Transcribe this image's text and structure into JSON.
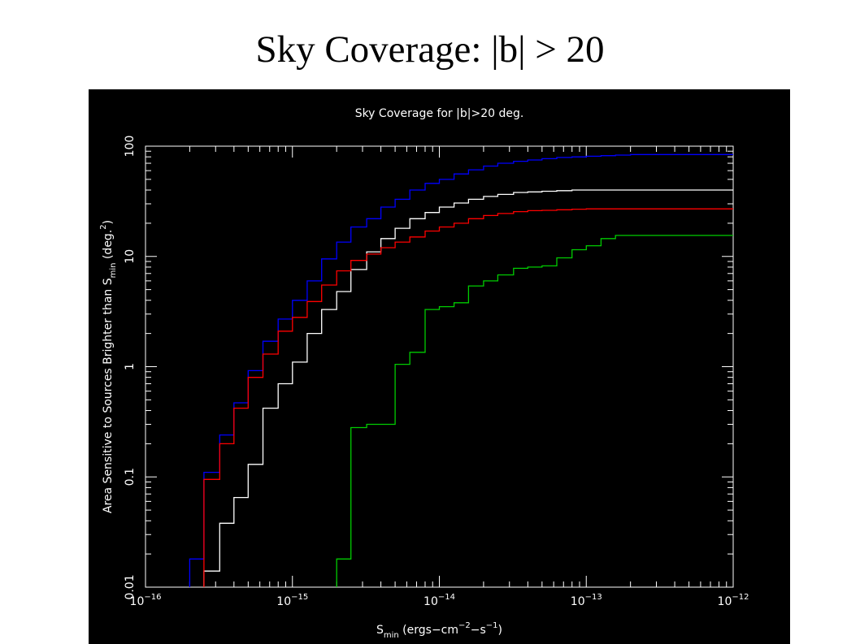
{
  "page": {
    "title": "Sky Coverage: |b| > 20"
  },
  "chart_data": {
    "type": "line",
    "title": "Sky Coverage for |b|>20 deg.",
    "xlabel": "S_min (ergs-cm^-2-s^-1)",
    "ylabel": "Area Sensitive to Sources Brighter than S_min (deg.^2)",
    "x_scale": "log",
    "y_scale": "log",
    "xlim": [
      1e-16,
      1e-12
    ],
    "ylim": [
      0.01,
      100
    ],
    "x_ticks": [
      {
        "value": 1e-16,
        "mantissa": "10",
        "exponent": "−16"
      },
      {
        "value": 1e-15,
        "mantissa": "10",
        "exponent": "−15"
      },
      {
        "value": 1e-14,
        "mantissa": "10",
        "exponent": "−14"
      },
      {
        "value": 1e-13,
        "mantissa": "10",
        "exponent": "−13"
      },
      {
        "value": 1e-12,
        "mantissa": "10",
        "exponent": "−12"
      }
    ],
    "y_ticks": [
      {
        "value": 0.01,
        "label": "0.01"
      },
      {
        "value": 0.1,
        "label": "0.1"
      },
      {
        "value": 1,
        "label": "1"
      },
      {
        "value": 10,
        "label": "10"
      },
      {
        "value": 100,
        "label": "100"
      }
    ],
    "grid": false,
    "step": true,
    "series": [
      {
        "color": "#0000ff",
        "x": [
          2e-16,
          2.5e-16,
          3.2e-16,
          4e-16,
          5e-16,
          6.3e-16,
          8e-16,
          1e-15,
          1.26e-15,
          1.58e-15,
          2e-15,
          2.5e-15,
          3.2e-15,
          4e-15,
          5e-15,
          6.3e-15,
          8e-15,
          1e-14,
          1.26e-14,
          1.58e-14,
          2e-14,
          2.5e-14,
          3.2e-14,
          4e-14,
          5e-14,
          6.3e-14,
          8e-14,
          1e-13,
          1.26e-13,
          1.58e-13,
          2e-13,
          1e-12
        ],
        "y": [
          0.018,
          0.11,
          0.24,
          0.47,
          0.92,
          1.7,
          2.7,
          4.0,
          6.0,
          9.5,
          13.5,
          18.5,
          22.0,
          28.0,
          33.0,
          40.0,
          46.0,
          50.0,
          56.0,
          61.0,
          66.0,
          70.0,
          73.0,
          75.0,
          77.0,
          79.0,
          80.0,
          81.0,
          82.0,
          83.0,
          84.0,
          84.0
        ]
      },
      {
        "color": "#ffffff",
        "x": [
          2.5e-16,
          3.2e-16,
          4e-16,
          5e-16,
          6.3e-16,
          8e-16,
          1e-15,
          1.26e-15,
          1.58e-15,
          2e-15,
          2.5e-15,
          3.2e-15,
          4e-15,
          5e-15,
          6.3e-15,
          8e-15,
          1e-14,
          1.26e-14,
          1.58e-14,
          2e-14,
          2.5e-14,
          3.2e-14,
          4e-14,
          5e-14,
          6.3e-14,
          8e-14,
          1e-13,
          1e-12
        ],
        "y": [
          0.014,
          0.038,
          0.065,
          0.13,
          0.42,
          0.7,
          1.1,
          2.0,
          3.3,
          4.8,
          7.6,
          11.0,
          14.5,
          18.0,
          22.0,
          25.0,
          28.0,
          30.5,
          33.0,
          35.0,
          36.5,
          38.0,
          38.5,
          39.0,
          39.5,
          40.0,
          40.0,
          40.0
        ]
      },
      {
        "color": "#ff0000",
        "x": [
          2.5e-16,
          3.2e-16,
          4e-16,
          5e-16,
          6.3e-16,
          8e-16,
          1e-15,
          1.26e-15,
          1.58e-15,
          2e-15,
          2.5e-15,
          3.2e-15,
          4e-15,
          5e-15,
          6.3e-15,
          8e-15,
          1e-14,
          1.26e-14,
          1.58e-14,
          2e-14,
          2.5e-14,
          3.2e-14,
          4e-14,
          5e-14,
          6.3e-14,
          8e-14,
          1e-13,
          1.26e-13,
          1e-12
        ],
        "y": [
          0.095,
          0.2,
          0.42,
          0.8,
          1.3,
          2.1,
          2.8,
          3.9,
          5.5,
          7.4,
          9.2,
          10.5,
          12.0,
          13.5,
          15.0,
          17.0,
          18.5,
          20.0,
          22.0,
          23.5,
          24.5,
          25.5,
          26.0,
          26.2,
          26.5,
          26.8,
          27.0,
          27.0,
          27.0
        ]
      },
      {
        "color": "#00cc00",
        "x": [
          2e-15,
          2.5e-15,
          3.2e-15,
          5e-15,
          6.3e-15,
          8e-15,
          1e-14,
          1.26e-14,
          1.58e-14,
          2e-14,
          2.5e-14,
          3.2e-14,
          4e-14,
          5e-14,
          6.3e-14,
          8e-14,
          1e-13,
          1.26e-13,
          1.58e-13,
          1e-12
        ],
        "y": [
          0.018,
          0.28,
          0.3,
          1.05,
          1.35,
          3.3,
          3.5,
          3.8,
          5.4,
          6.0,
          6.8,
          7.8,
          8.0,
          8.2,
          9.7,
          11.5,
          12.5,
          14.5,
          15.5,
          15.5
        ]
      }
    ]
  }
}
